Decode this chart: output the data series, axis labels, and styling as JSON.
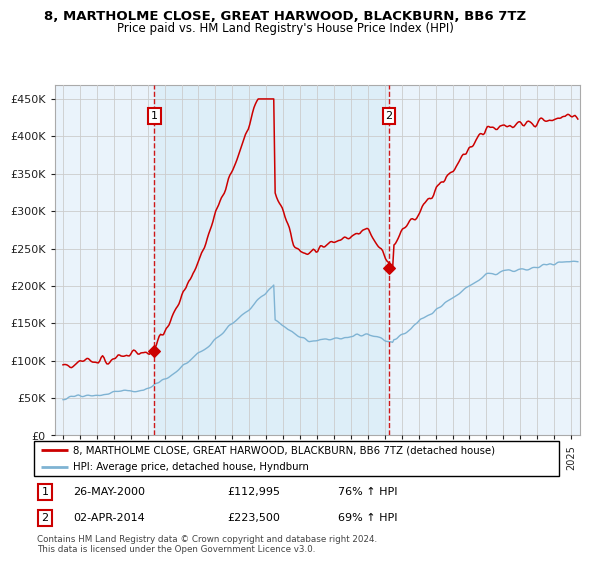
{
  "title": "8, MARTHOLME CLOSE, GREAT HARWOOD, BLACKBURN, BB6 7TZ",
  "subtitle": "Price paid vs. HM Land Registry's House Price Index (HPI)",
  "red_label": "8, MARTHOLME CLOSE, GREAT HARWOOD, BLACKBURN, BB6 7TZ (detached house)",
  "blue_label": "HPI: Average price, detached house, Hyndburn",
  "sale1_date": "26-MAY-2000",
  "sale1_price": "£112,995",
  "sale1_hpi": "76% ↑ HPI",
  "sale1_year": 2000.4,
  "sale1_value": 112995,
  "sale2_date": "02-APR-2014",
  "sale2_price": "£223,500",
  "sale2_hpi": "69% ↑ HPI",
  "sale2_year": 2014.25,
  "sale2_value": 223500,
  "ylim_max": 450000,
  "xlim_start": 1994.5,
  "xlim_end": 2025.5,
  "footnote": "Contains HM Land Registry data © Crown copyright and database right 2024.\nThis data is licensed under the Open Government Licence v3.0.",
  "background_color": "#ffffff",
  "chart_bg": "#eaf3fb",
  "grid_color": "#cccccc",
  "red_color": "#cc0000",
  "blue_color": "#7fb3d3",
  "shade_color": "#ddeef8"
}
